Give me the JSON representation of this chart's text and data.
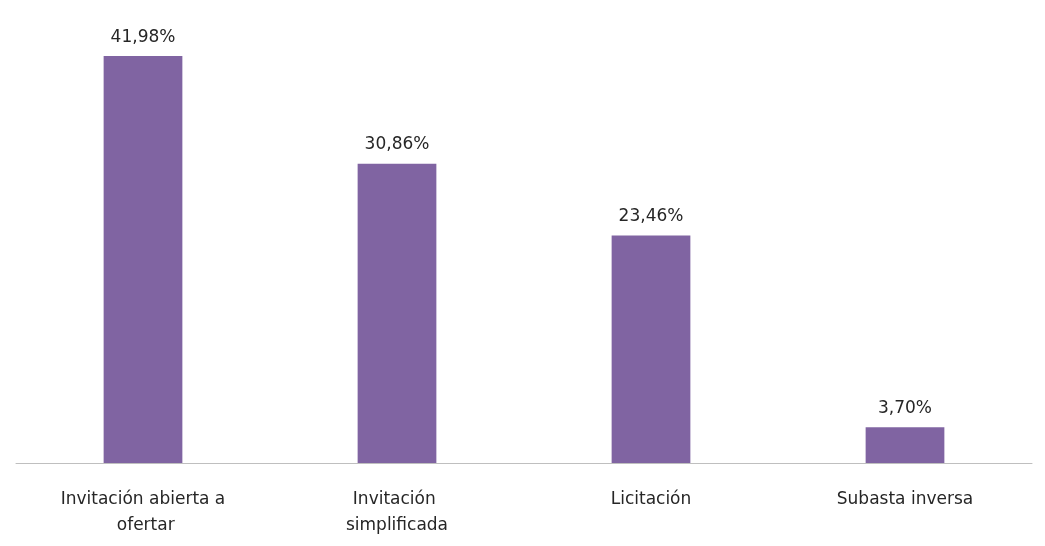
{
  "chart_data": {
    "type": "bar",
    "categories": [
      "Invitación abierta a ofertar",
      "Invitación simplificada",
      "Licitación",
      "Subasta inversa"
    ],
    "values": [
      41.98,
      30.86,
      23.46,
      3.7
    ],
    "value_labels": [
      "41,98%",
      "30,86%",
      "23,46%",
      "3,70%"
    ],
    "color": "#8064a2"
  }
}
